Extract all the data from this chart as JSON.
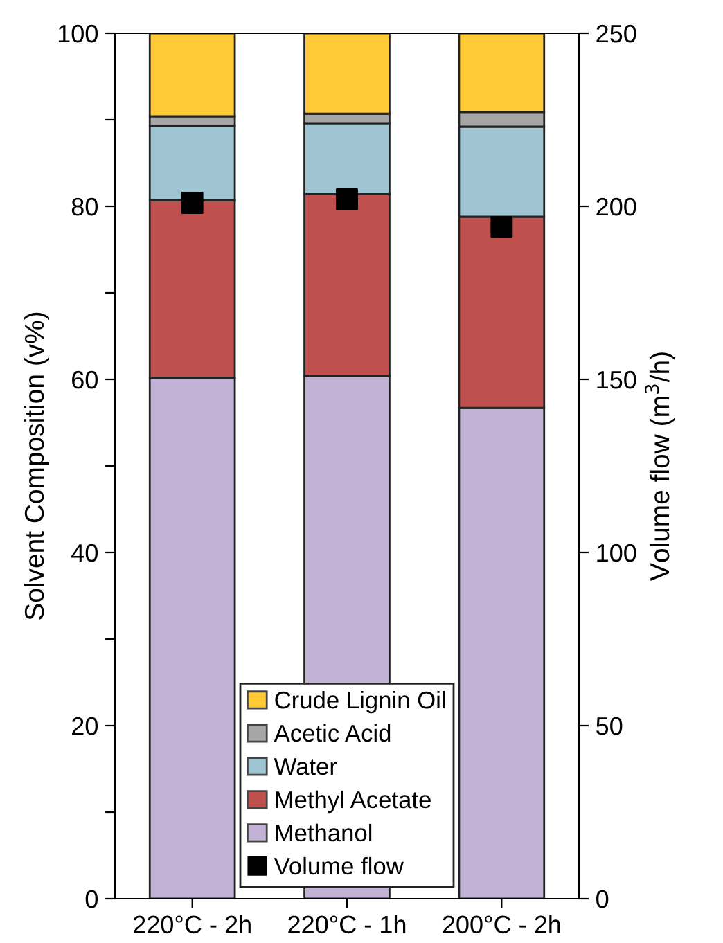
{
  "chart_data": {
    "type": "bar",
    "stacked": true,
    "categories": [
      "220°C - 2h",
      "220°C - 1h",
      "200°C - 2h"
    ],
    "ylabel": "Solvent Composition (v%)",
    "y2label": "Volume flow (m$^{3}$/h)",
    "ylim": [
      0,
      100
    ],
    "yticks": [
      0,
      {
        "value": 10,
        "label": null
      },
      20,
      {
        "value": 30,
        "label": null
      },
      40,
      {
        "value": 50,
        "label": null
      },
      60,
      {
        "value": 70,
        "label": null
      },
      80,
      {
        "value": 90,
        "label": null
      },
      100
    ],
    "y2lim": [
      0,
      250
    ],
    "y2ticks": [
      0,
      50,
      100,
      150,
      200,
      250
    ],
    "legend": "bottom",
    "grid": false,
    "series": [
      {
        "name": "Methanol",
        "color": "#c1b2d6",
        "values": [
          60.2,
          60.4,
          56.7
        ]
      },
      {
        "name": "Methyl Acetate",
        "color": "#c0504d",
        "values": [
          20.5,
          21.0,
          22.1
        ]
      },
      {
        "name": "Water",
        "color": "#9fc5d3",
        "values": [
          8.6,
          8.2,
          10.4
        ]
      },
      {
        "name": "Acetic Acid",
        "color": "#a6a6a6",
        "values": [
          1.1,
          1.1,
          1.7
        ]
      },
      {
        "name": "Crude Lignin Oil",
        "color": "#ffca36",
        "values": [
          9.6,
          9.3,
          9.1
        ]
      },
      {
        "name": "Volume flow",
        "color": "#000000",
        "type": "scatter",
        "axis": "y2",
        "marker": "square",
        "values": [
          201,
          202,
          194
        ]
      }
    ]
  }
}
